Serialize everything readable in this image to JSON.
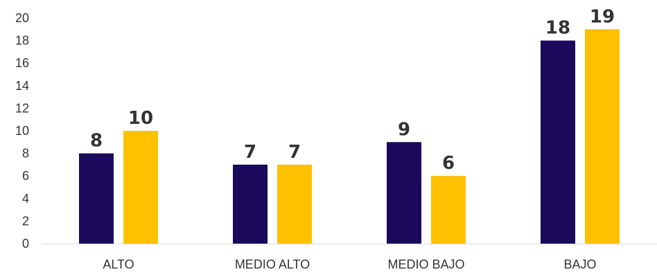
{
  "chart_data": {
    "type": "bar",
    "title": "",
    "xlabel": "",
    "ylabel": "",
    "categories": [
      "ALTO",
      "MEDIO ALTO",
      "MEDIO BAJO",
      "BAJO"
    ],
    "series": [
      {
        "values": [
          8,
          7,
          9,
          18
        ],
        "color": "#1b0a5c"
      },
      {
        "values": [
          10,
          7,
          6,
          19
        ],
        "color": "#ffc000"
      }
    ],
    "ylim": [
      0,
      20
    ],
    "yticks": [
      0,
      2,
      4,
      6,
      8,
      10,
      12,
      14,
      16,
      18,
      20
    ],
    "grid": false,
    "legend": "none",
    "data_labels": true
  }
}
